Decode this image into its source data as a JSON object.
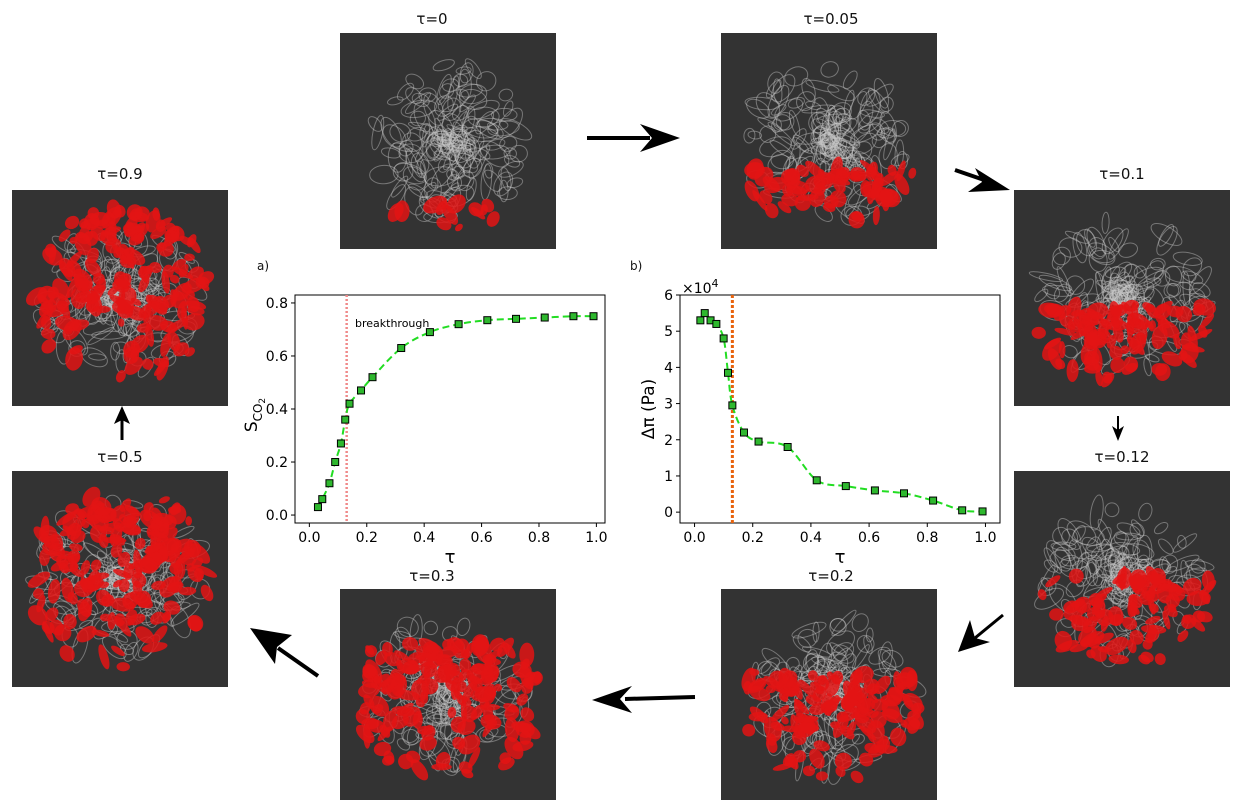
{
  "panels": {
    "a": "a)",
    "b": "b)"
  },
  "snapshots": [
    {
      "id": "t0",
      "label": "τ=0",
      "fill": 0.12
    },
    {
      "id": "t005",
      "label": "τ=0.05",
      "fill": 0.3
    },
    {
      "id": "t01",
      "label": "τ=0.1",
      "fill": 0.4
    },
    {
      "id": "t012",
      "label": "τ=0.12",
      "fill": 0.45
    },
    {
      "id": "t02",
      "label": "τ=0.2",
      "fill": 0.55
    },
    {
      "id": "t03",
      "label": "τ=0.3",
      "fill": 0.7
    },
    {
      "id": "t05",
      "label": "τ=0.5",
      "fill": 0.85
    },
    {
      "id": "t09",
      "label": "τ=0.9",
      "fill": 0.92
    }
  ],
  "colors": {
    "snapshot_bg": "#333333",
    "saturated": "#e31414",
    "matrix": "#c8c8c8",
    "series": "#22dd22",
    "marker_fill": "#2eb82e",
    "breakthrough_a": "#f08a8a",
    "breakthrough_b": "#e8620c"
  },
  "chart_data": [
    {
      "type": "line",
      "panel": "a)",
      "xlabel": "τ",
      "ylabel_main": "S",
      "ylabel_sub": "CO",
      "ylabel_sub2": "2",
      "xlim": [
        -0.05,
        1.03
      ],
      "ylim": [
        -0.03,
        0.83
      ],
      "xticks": [
        0.0,
        0.2,
        0.4,
        0.6,
        0.8,
        1.0
      ],
      "xtick_labels": [
        "0.0",
        "0.2",
        "0.4",
        "0.6",
        "0.8",
        "1.0"
      ],
      "yticks": [
        0.0,
        0.2,
        0.4,
        0.6,
        0.8
      ],
      "ytick_labels": [
        "0.0",
        "0.2",
        "0.4",
        "0.6",
        "0.8"
      ],
      "breakthrough_x": 0.13,
      "annotation": "breakthrough",
      "x": [
        0.03,
        0.045,
        0.07,
        0.09,
        0.11,
        0.125,
        0.14,
        0.18,
        0.22,
        0.32,
        0.42,
        0.52,
        0.62,
        0.72,
        0.82,
        0.92,
        0.99
      ],
      "y": [
        0.03,
        0.06,
        0.12,
        0.2,
        0.27,
        0.36,
        0.42,
        0.47,
        0.52,
        0.63,
        0.69,
        0.72,
        0.735,
        0.74,
        0.745,
        0.75,
        0.75
      ]
    },
    {
      "type": "line",
      "panel": "b)",
      "xlabel": "τ",
      "ylabel": "Δπ (Pa)",
      "multiplier_prefix": "×10",
      "multiplier_exp": "4",
      "xlim": [
        -0.05,
        1.05
      ],
      "ylim": [
        -0.3,
        6.0
      ],
      "xticks": [
        0.0,
        0.2,
        0.4,
        0.6,
        0.8,
        1.0
      ],
      "xtick_labels": [
        "0.0",
        "0.2",
        "0.4",
        "0.6",
        "0.8",
        "1.0"
      ],
      "yticks": [
        0,
        1,
        2,
        3,
        4,
        5,
        6
      ],
      "ytick_labels": [
        "0",
        "1",
        "2",
        "3",
        "4",
        "5",
        "6"
      ],
      "breakthrough_x": 0.13,
      "x": [
        0.02,
        0.035,
        0.055,
        0.075,
        0.1,
        0.115,
        0.13,
        0.17,
        0.22,
        0.32,
        0.42,
        0.52,
        0.62,
        0.72,
        0.82,
        0.92,
        0.99
      ],
      "y": [
        5.3,
        5.5,
        5.3,
        5.2,
        4.8,
        3.85,
        2.95,
        2.2,
        1.95,
        1.8,
        0.88,
        0.72,
        0.6,
        0.52,
        0.32,
        0.05,
        0.02
      ]
    }
  ]
}
